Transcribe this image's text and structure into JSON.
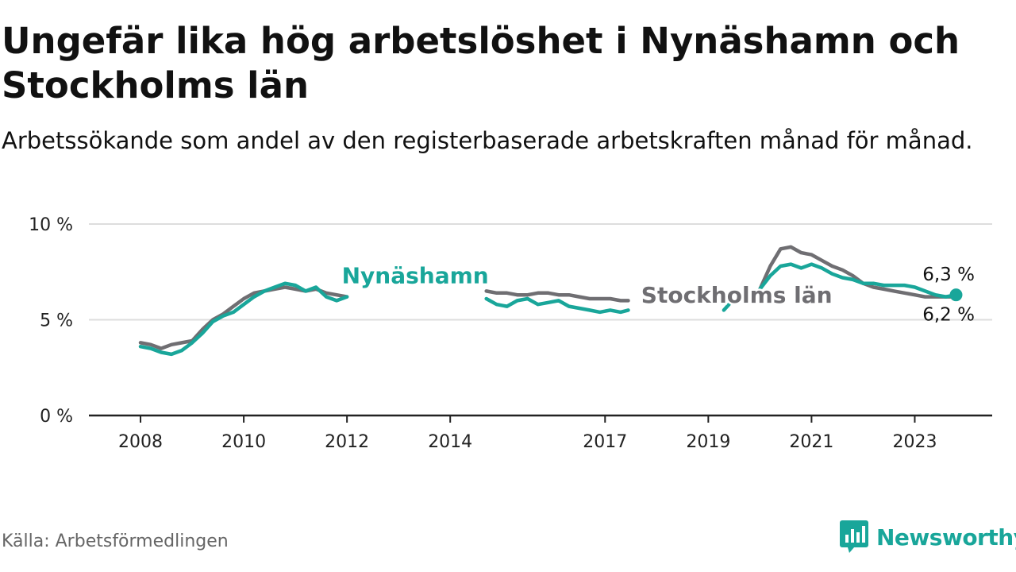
{
  "header": {
    "title": "Ungefär lika hög arbetslöshet i Nynäshamn och Stockholms län",
    "subtitle": "Arbetssökande som andel av den registerbaserade arbetskraften månad för månad."
  },
  "footer": {
    "source": "Källa: Arbetsförmedlingen",
    "brand": "Newsworthy"
  },
  "colors": {
    "nynashamn": "#19a69a",
    "stockholm": "#6f6e72",
    "grid": "#dddddd",
    "axis": "#222222"
  },
  "chart_data": {
    "type": "line",
    "title": "Ungefär lika hög arbetslöshet i Nynäshamn och Stockholms län",
    "xlabel": "",
    "ylabel": "",
    "xlim": [
      2007.0,
      2024.5
    ],
    "ylim": [
      0,
      10
    ],
    "x_ticks": [
      {
        "value": 2008,
        "label": "2008"
      },
      {
        "value": 2010,
        "label": "2010"
      },
      {
        "value": 2012,
        "label": "2012"
      },
      {
        "value": 2014,
        "label": "2014"
      },
      {
        "value": 2017,
        "label": "2017"
      },
      {
        "value": 2019,
        "label": "2019"
      },
      {
        "value": 2021,
        "label": "2021"
      },
      {
        "value": 2023,
        "label": "2023"
      }
    ],
    "y_ticks": [
      {
        "value": 0,
        "label": "0 %"
      },
      {
        "value": 5,
        "label": "5 %"
      },
      {
        "value": 10,
        "label": "10 %"
      }
    ],
    "series": [
      {
        "name": "Stockholms län",
        "label": "Stockholms län",
        "color": "#6f6e72",
        "end_label": "6,2 %",
        "segments": [
          [
            [
              2008.0,
              3.8
            ],
            [
              2008.2,
              3.7
            ],
            [
              2008.4,
              3.5
            ],
            [
              2008.6,
              3.7
            ],
            [
              2008.8,
              3.8
            ],
            [
              2009.0,
              3.9
            ],
            [
              2009.2,
              4.5
            ],
            [
              2009.4,
              5.0
            ],
            [
              2009.6,
              5.3
            ],
            [
              2009.8,
              5.7
            ],
            [
              2010.0,
              6.1
            ],
            [
              2010.2,
              6.4
            ],
            [
              2010.4,
              6.5
            ],
            [
              2010.6,
              6.6
            ],
            [
              2010.8,
              6.7
            ],
            [
              2011.0,
              6.6
            ],
            [
              2011.2,
              6.5
            ],
            [
              2011.4,
              6.6
            ],
            [
              2011.6,
              6.4
            ],
            [
              2011.8,
              6.3
            ],
            [
              2012.0,
              6.2
            ]
          ],
          [
            [
              2014.7,
              6.5
            ],
            [
              2014.9,
              6.4
            ],
            [
              2015.1,
              6.4
            ],
            [
              2015.3,
              6.3
            ],
            [
              2015.5,
              6.3
            ],
            [
              2015.7,
              6.4
            ],
            [
              2015.9,
              6.4
            ],
            [
              2016.1,
              6.3
            ],
            [
              2016.3,
              6.3
            ],
            [
              2016.5,
              6.2
            ],
            [
              2016.7,
              6.1
            ],
            [
              2016.9,
              6.1
            ],
            [
              2017.1,
              6.1
            ],
            [
              2017.3,
              6.0
            ],
            [
              2017.45,
              6.0
            ]
          ],
          [
            [
              2020.0,
              6.6
            ],
            [
              2020.2,
              7.8
            ],
            [
              2020.4,
              8.7
            ],
            [
              2020.6,
              8.8
            ],
            [
              2020.8,
              8.5
            ],
            [
              2021.0,
              8.4
            ],
            [
              2021.2,
              8.1
            ],
            [
              2021.4,
              7.8
            ],
            [
              2021.6,
              7.6
            ],
            [
              2021.8,
              7.3
            ],
            [
              2022.0,
              6.9
            ],
            [
              2022.2,
              6.7
            ],
            [
              2022.4,
              6.6
            ],
            [
              2022.6,
              6.5
            ],
            [
              2022.8,
              6.4
            ],
            [
              2023.0,
              6.3
            ],
            [
              2023.2,
              6.2
            ],
            [
              2023.4,
              6.2
            ],
            [
              2023.6,
              6.2
            ],
            [
              2023.8,
              6.2
            ]
          ]
        ]
      },
      {
        "name": "Nynäshamn",
        "label": "Nynäshamn",
        "color": "#19a69a",
        "end_label": "6,3 %",
        "segments": [
          [
            [
              2008.0,
              3.6
            ],
            [
              2008.2,
              3.5
            ],
            [
              2008.4,
              3.3
            ],
            [
              2008.6,
              3.2
            ],
            [
              2008.8,
              3.4
            ],
            [
              2009.0,
              3.8
            ],
            [
              2009.2,
              4.3
            ],
            [
              2009.4,
              4.9
            ],
            [
              2009.6,
              5.2
            ],
            [
              2009.8,
              5.4
            ],
            [
              2010.0,
              5.8
            ],
            [
              2010.2,
              6.2
            ],
            [
              2010.4,
              6.5
            ],
            [
              2010.6,
              6.7
            ],
            [
              2010.8,
              6.9
            ],
            [
              2011.0,
              6.8
            ],
            [
              2011.2,
              6.5
            ],
            [
              2011.4,
              6.7
            ],
            [
              2011.6,
              6.2
            ],
            [
              2011.8,
              6.0
            ],
            [
              2012.0,
              6.2
            ]
          ],
          [
            [
              2014.7,
              6.1
            ],
            [
              2014.9,
              5.8
            ],
            [
              2015.1,
              5.7
            ],
            [
              2015.3,
              6.0
            ],
            [
              2015.5,
              6.1
            ],
            [
              2015.7,
              5.8
            ],
            [
              2015.9,
              5.9
            ],
            [
              2016.1,
              6.0
            ],
            [
              2016.3,
              5.7
            ],
            [
              2016.5,
              5.6
            ],
            [
              2016.7,
              5.5
            ],
            [
              2016.9,
              5.4
            ],
            [
              2017.1,
              5.5
            ],
            [
              2017.3,
              5.4
            ],
            [
              2017.45,
              5.5
            ]
          ],
          [
            [
              2019.3,
              5.5
            ],
            [
              2019.4,
              5.8
            ]
          ],
          [
            [
              2020.0,
              6.6
            ],
            [
              2020.2,
              7.3
            ],
            [
              2020.4,
              7.8
            ],
            [
              2020.6,
              7.9
            ],
            [
              2020.8,
              7.7
            ],
            [
              2021.0,
              7.9
            ],
            [
              2021.2,
              7.7
            ],
            [
              2021.4,
              7.4
            ],
            [
              2021.6,
              7.2
            ],
            [
              2021.8,
              7.1
            ],
            [
              2022.0,
              6.9
            ],
            [
              2022.2,
              6.9
            ],
            [
              2022.4,
              6.8
            ],
            [
              2022.6,
              6.8
            ],
            [
              2022.8,
              6.8
            ],
            [
              2023.0,
              6.7
            ],
            [
              2023.2,
              6.5
            ],
            [
              2023.4,
              6.3
            ],
            [
              2023.6,
              6.2
            ],
            [
              2023.8,
              6.3
            ]
          ]
        ]
      }
    ]
  }
}
